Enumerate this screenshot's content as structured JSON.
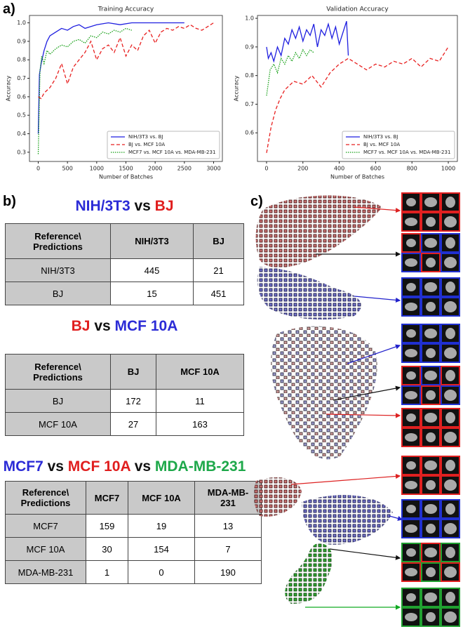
{
  "panel_labels": [
    "a)",
    "b)",
    "c)"
  ],
  "chart_data": [
    {
      "type": "line",
      "title": "Training Accuracy",
      "x_label": "Number of Batches",
      "y_label": "Accuracy",
      "xlim": [
        -150,
        3150
      ],
      "xticks": [
        0,
        500,
        1000,
        1500,
        2000,
        2500,
        3000
      ],
      "ylim": [
        0.25,
        1.04
      ],
      "yticks": [
        0.3,
        0.4,
        0.5,
        0.6,
        0.7,
        0.8,
        0.9,
        {
          "value": 1,
          "label": "1.0"
        }
      ],
      "legend": "lower right",
      "series": [
        {
          "name": "NIH/3T3 vs. BJ",
          "color": "#1f1fe0",
          "style": "solid",
          "x": [
            0,
            20,
            50,
            100,
            150,
            200,
            300,
            400,
            500,
            600,
            700,
            800,
            1000,
            1200,
            1400,
            1600,
            1800,
            2000,
            2200,
            2500
          ],
          "values": [
            0.4,
            0.72,
            0.78,
            0.85,
            0.9,
            0.93,
            0.95,
            0.97,
            0.96,
            0.98,
            0.99,
            0.97,
            0.99,
            1.0,
            0.99,
            1.0,
            1.0,
            1.0,
            1.0,
            1.0
          ]
        },
        {
          "name": "BJ vs. MCF 10A",
          "color": "#e82020",
          "style": "dashed",
          "x": [
            0,
            50,
            100,
            200,
            300,
            400,
            500,
            600,
            700,
            800,
            900,
            1000,
            1100,
            1200,
            1300,
            1400,
            1500,
            1600,
            1700,
            1800,
            1900,
            2000,
            2100,
            2200,
            2300,
            2400,
            2500,
            2600,
            2700,
            2800,
            2900,
            3000
          ],
          "values": [
            0.6,
            0.59,
            0.62,
            0.65,
            0.7,
            0.78,
            0.67,
            0.76,
            0.8,
            0.84,
            0.9,
            0.8,
            0.86,
            0.88,
            0.84,
            0.92,
            0.82,
            0.88,
            0.85,
            0.93,
            0.96,
            0.89,
            0.95,
            0.97,
            0.96,
            0.98,
            0.97,
            0.99,
            0.97,
            0.96,
            0.98,
            1.0
          ]
        },
        {
          "name": "MCF7 vs. MCF 10A vs. MDA-MB-231",
          "color": "#18a018",
          "style": "dotted",
          "x": [
            0,
            30,
            60,
            100,
            150,
            200,
            300,
            400,
            500,
            600,
            700,
            800,
            900,
            1000,
            1100,
            1200,
            1300,
            1400,
            1500,
            1600
          ],
          "values": [
            0.29,
            0.74,
            0.82,
            0.78,
            0.85,
            0.83,
            0.86,
            0.88,
            0.87,
            0.9,
            0.91,
            0.89,
            0.93,
            0.92,
            0.95,
            0.94,
            0.96,
            0.95,
            0.97,
            0.96
          ]
        }
      ]
    },
    {
      "type": "line",
      "title": "Validation Accuracy",
      "x_label": "Number of Batches",
      "y_label": "Accuracy",
      "xlim": [
        -50,
        1050
      ],
      "xticks": [
        0,
        200,
        400,
        600,
        800,
        1000
      ],
      "ylim": [
        0.5,
        1.01
      ],
      "yticks": [
        0.6,
        0.7,
        0.8,
        0.9,
        {
          "value": 1,
          "label": "1.0"
        }
      ],
      "legend": "lower right",
      "series": [
        {
          "name": "NIH/3T3 vs. BJ",
          "color": "#1f1fe0",
          "style": "solid",
          "x": [
            0,
            10,
            25,
            40,
            60,
            80,
            100,
            120,
            140,
            160,
            180,
            200,
            220,
            240,
            260,
            280,
            300,
            320,
            340,
            360,
            380,
            400,
            420,
            440,
            450
          ],
          "values": [
            0.9,
            0.86,
            0.88,
            0.85,
            0.9,
            0.87,
            0.93,
            0.91,
            0.96,
            0.93,
            0.97,
            0.92,
            0.96,
            0.94,
            0.98,
            0.9,
            0.96,
            0.94,
            0.98,
            0.93,
            0.97,
            0.91,
            0.95,
            0.99,
            0.87
          ]
        },
        {
          "name": "BJ vs. MCF 10A",
          "color": "#e82020",
          "style": "dashed",
          "x": [
            0,
            25,
            50,
            75,
            100,
            150,
            200,
            250,
            300,
            350,
            400,
            450,
            500,
            550,
            600,
            650,
            700,
            750,
            800,
            850,
            900,
            950,
            1000
          ],
          "values": [
            0.53,
            0.62,
            0.68,
            0.72,
            0.75,
            0.78,
            0.77,
            0.8,
            0.76,
            0.81,
            0.84,
            0.86,
            0.84,
            0.82,
            0.84,
            0.83,
            0.85,
            0.84,
            0.86,
            0.83,
            0.86,
            0.85,
            0.9
          ]
        },
        {
          "name": "MCF7 vs. MCF 10A vs. MDA-MB-231",
          "color": "#18a018",
          "style": "dotted",
          "x": [
            0,
            20,
            40,
            60,
            80,
            100,
            120,
            140,
            160,
            180,
            200,
            220,
            240,
            260
          ],
          "values": [
            0.73,
            0.82,
            0.84,
            0.81,
            0.86,
            0.84,
            0.87,
            0.85,
            0.88,
            0.86,
            0.89,
            0.87,
            0.89,
            0.88
          ]
        }
      ]
    }
  ],
  "tables": [
    {
      "title": [
        {
          "text": "NIH/3T3",
          "color": "#2b2bd6"
        },
        {
          "text": " vs ",
          "color": "#111111"
        },
        {
          "text": "BJ",
          "color": "#e01e1e"
        }
      ],
      "header": [
        "Reference\\\nPredictions",
        "NIH/3T3",
        "BJ"
      ],
      "rows": [
        [
          "NIH/3T3",
          "445",
          "21"
        ],
        [
          "BJ",
          "15",
          "451"
        ]
      ]
    },
    {
      "title": [
        {
          "text": "BJ",
          "color": "#e01e1e"
        },
        {
          "text": " vs ",
          "color": "#111111"
        },
        {
          "text": "MCF 10A",
          "color": "#2b2bd6"
        }
      ],
      "header": [
        "Reference\\\nPredictions",
        "BJ",
        "MCF 10A"
      ],
      "rows": [
        [
          "BJ",
          "172",
          "11"
        ],
        [
          "MCF 10A",
          "27",
          "163"
        ]
      ]
    },
    {
      "title": [
        {
          "text": "MCF7",
          "color": "#2b2bd6"
        },
        {
          "text": " vs ",
          "color": "#111111"
        },
        {
          "text": "MCF 10A",
          "color": "#e01e1e"
        },
        {
          "text": " vs ",
          "color": "#111111"
        },
        {
          "text": "MDA-MB-231",
          "color": "#1ea84a"
        }
      ],
      "header": [
        "Reference\\\nPredictions",
        "MCF7",
        "MCF 10A",
        "MDA-MB-\n231"
      ],
      "rows": [
        [
          "MCF7",
          "159",
          "19",
          "13"
        ],
        [
          "MCF 10A",
          "30",
          "154",
          "7"
        ],
        [
          "MDA-MB-231",
          "1",
          "0",
          "190"
        ]
      ]
    }
  ]
}
